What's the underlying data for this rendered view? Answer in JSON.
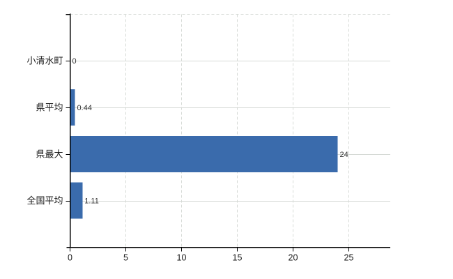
{
  "chart_data": {
    "type": "bar",
    "orientation": "horizontal",
    "title": "",
    "xlabel": "",
    "ylabel": "",
    "categories": [
      "小清水町",
      "県平均",
      "県最大",
      "全国平均"
    ],
    "values": [
      0,
      0.44,
      24,
      1.11
    ],
    "value_labels": [
      "0",
      "0.44",
      "24",
      "1.11"
    ],
    "x_ticks": [
      0,
      5,
      10,
      15,
      20,
      25
    ],
    "x_tick_labels": [
      "0",
      "5",
      "10",
      "15",
      "20",
      "25"
    ],
    "xlim": [
      0,
      28.75
    ],
    "grid": {
      "horizontal": "solid",
      "vertical": "dashed",
      "top_border": "dashed"
    },
    "legend": "none",
    "colors": {
      "bar": "#3a6bac",
      "grid": "#d6dad6",
      "axis": "#000000",
      "value_label": "#333333",
      "tick_label": "#1a1a1a",
      "category_label": "#1a1a1a",
      "background": "#ffffff"
    }
  }
}
